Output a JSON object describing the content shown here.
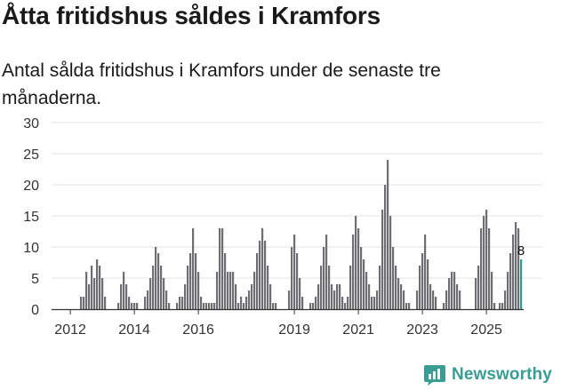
{
  "header": {
    "title": "Åtta fritidshus såldes i Kramfors",
    "subtitle": "Antal sålda fritidshus i Kramfors under de senaste tre månaderna."
  },
  "brand": {
    "name": "Newsworthy",
    "color": "#3a9d93",
    "icon": "newsworthy-logo-icon"
  },
  "colors": {
    "bar": "#6e6d72",
    "highlight": "#2a9d8f",
    "grid": "#e3e3e3",
    "axis": "#333333"
  },
  "chart_data": {
    "type": "bar",
    "title": "Åtta fritidshus såldes i Kramfors",
    "subtitle": "Antal sålda fritidshus i Kramfors under de senaste tre månaderna.",
    "xlabel": "",
    "ylabel": "",
    "ylim": [
      0,
      30
    ],
    "yticks": [
      0,
      5,
      10,
      15,
      20,
      25,
      30
    ],
    "grid": true,
    "x_ticks": [
      {
        "label": "2012",
        "index": 6
      },
      {
        "label": "2014",
        "index": 30
      },
      {
        "label": "2016",
        "index": 54
      },
      {
        "label": "2019",
        "index": 90
      },
      {
        "label": "2021",
        "index": 114
      },
      {
        "label": "2023",
        "index": 138
      },
      {
        "label": "2025",
        "index": 162
      }
    ],
    "start": "2011-01",
    "frequency": "monthly, rolling three months",
    "values": [
      0,
      0,
      0,
      0,
      0,
      0,
      0,
      0,
      0,
      0,
      2,
      2,
      6,
      4,
      7,
      5,
      8,
      7,
      5,
      2,
      0,
      0,
      0,
      0,
      1,
      4,
      6,
      4,
      2,
      1,
      1,
      1,
      0,
      0,
      2,
      3,
      5,
      7,
      10,
      9,
      7,
      5,
      3,
      1,
      0,
      0,
      1,
      2,
      2,
      4,
      7,
      9,
      13,
      9,
      6,
      2,
      1,
      1,
      1,
      1,
      1,
      6,
      13,
      13,
      9,
      6,
      6,
      6,
      4,
      1,
      2,
      1,
      2,
      3,
      4,
      6,
      9,
      11,
      13,
      11,
      7,
      4,
      1,
      1,
      0,
      0,
      0,
      0,
      3,
      10,
      12,
      9,
      5,
      2,
      0,
      0,
      1,
      1,
      2,
      4,
      7,
      10,
      12,
      7,
      4,
      3,
      4,
      4,
      2,
      1,
      2,
      7,
      12,
      15,
      13,
      10,
      8,
      6,
      4,
      2,
      2,
      3,
      7,
      16,
      20,
      24,
      15,
      10,
      7,
      5,
      4,
      3,
      1,
      1,
      0,
      0,
      3,
      7,
      9,
      12,
      8,
      4,
      3,
      2,
      0,
      0,
      1,
      3,
      5,
      6,
      6,
      4,
      3,
      0,
      0,
      0,
      0,
      0,
      5,
      7,
      13,
      15,
      16,
      13,
      6,
      1,
      0,
      1,
      1,
      3,
      6,
      9,
      12,
      14,
      13,
      8
    ],
    "highlight_last": true,
    "last_value_label": "8"
  }
}
